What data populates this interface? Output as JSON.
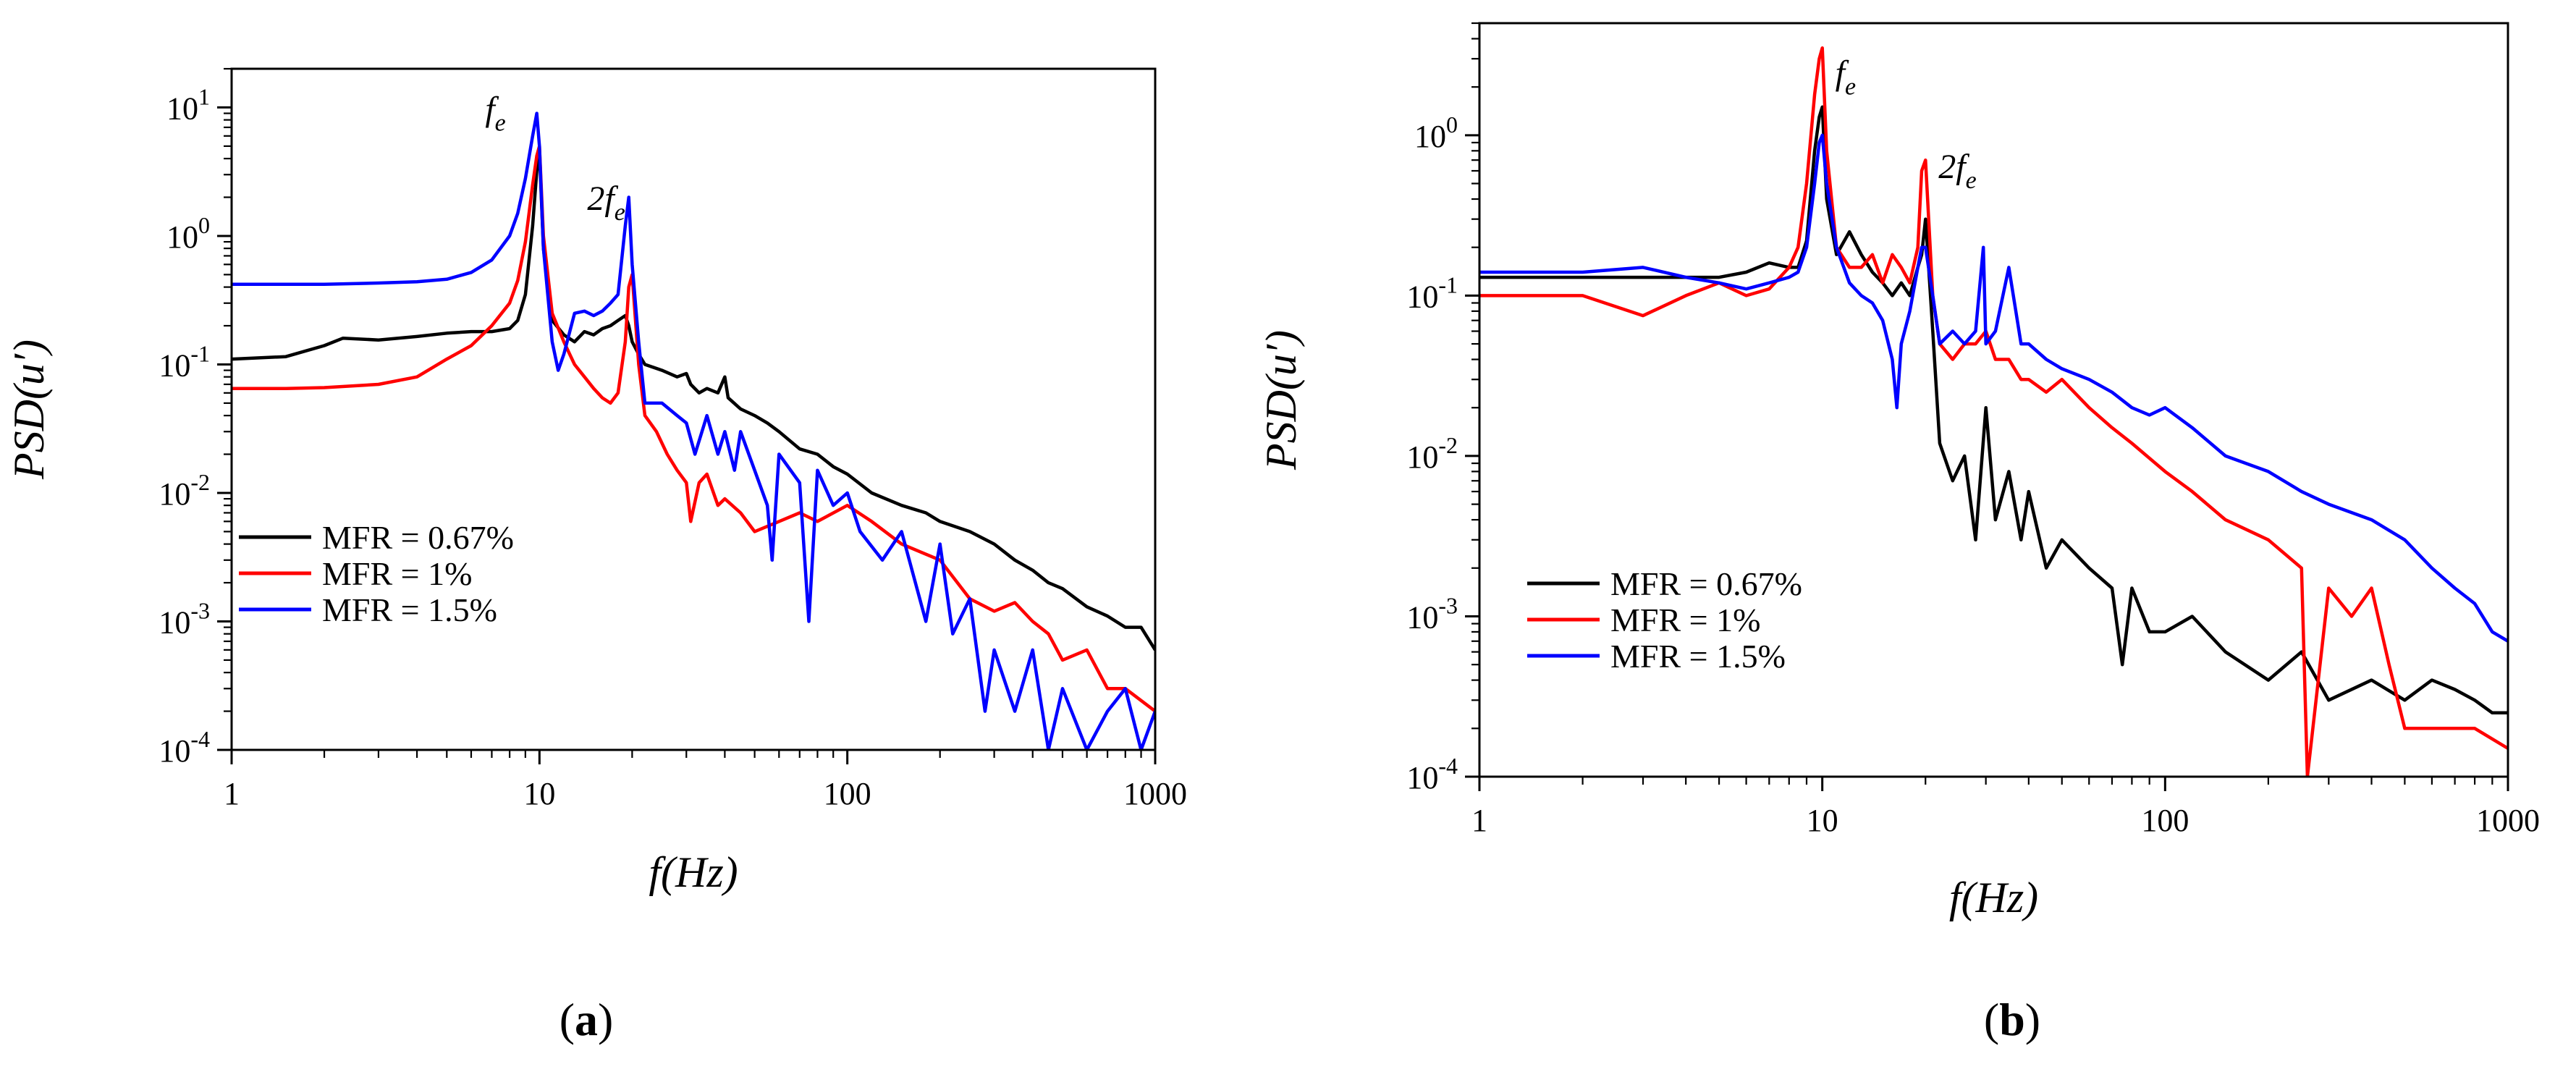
{
  "chart_data": [
    {
      "type": "line",
      "panel_label": "(a)",
      "xlabel": "f(Hz)",
      "ylabel": "PSD(u′)",
      "xscale": "log",
      "yscale": "log",
      "xlim": [
        1,
        1000
      ],
      "ylim": [
        0.0001,
        20
      ],
      "xticks": [
        "1",
        "10",
        "100",
        "1000"
      ],
      "yticks": [
        {
          "value": 0.0001,
          "base": "10",
          "exp": "-4"
        },
        {
          "value": 0.001,
          "base": "10",
          "exp": "-3"
        },
        {
          "value": 0.01,
          "base": "10",
          "exp": "-2"
        },
        {
          "value": 0.1,
          "base": "10",
          "exp": "-1"
        },
        {
          "value": 1,
          "base": "10",
          "exp": "0"
        },
        {
          "value": 10,
          "base": "10",
          "exp": "1"
        }
      ],
      "legend_position": "lower-left",
      "annotations": [
        {
          "main": "f",
          "sub": "e",
          "x": 10,
          "y": 10
        },
        {
          "main": "2f",
          "sub": "e",
          "x": 20,
          "y": 2.2
        }
      ],
      "series": [
        {
          "name": "MFR = 0.67%",
          "color": "#000000",
          "x": [
            1,
            1.5,
            2,
            2.3,
            3,
            4,
            5,
            6,
            7,
            8,
            8.5,
            9,
            9.5,
            9.8,
            10,
            10.3,
            11,
            12,
            13,
            14,
            15,
            16,
            17,
            18,
            19,
            19.5,
            20,
            21,
            22,
            25,
            28,
            30,
            31,
            33,
            35,
            38,
            40,
            41,
            45,
            50,
            55,
            60,
            70,
            80,
            90,
            100,
            120,
            150,
            180,
            200,
            250,
            300,
            350,
            400,
            450,
            500,
            600,
            700,
            800,
            900,
            1000
          ],
          "y": [
            0.11,
            0.115,
            0.14,
            0.16,
            0.155,
            0.165,
            0.175,
            0.18,
            0.18,
            0.19,
            0.22,
            0.35,
            1.2,
            3.2,
            4.5,
            0.8,
            0.22,
            0.17,
            0.15,
            0.18,
            0.17,
            0.19,
            0.2,
            0.22,
            0.24,
            0.2,
            0.15,
            0.12,
            0.1,
            0.09,
            0.08,
            0.085,
            0.07,
            0.06,
            0.065,
            0.06,
            0.08,
            0.055,
            0.045,
            0.04,
            0.035,
            0.03,
            0.022,
            0.02,
            0.016,
            0.014,
            0.01,
            0.008,
            0.007,
            0.006,
            0.005,
            0.004,
            0.003,
            0.0025,
            0.002,
            0.0018,
            0.0013,
            0.0011,
            0.0009,
            0.0009,
            0.0006
          ]
        },
        {
          "name": "MFR = 1%",
          "color": "#ff0000",
          "x": [
            1,
            1.5,
            2,
            3,
            4,
            5,
            6,
            7,
            8,
            8.5,
            9,
            9.5,
            9.8,
            10,
            10.3,
            11,
            12,
            13,
            14,
            15,
            16,
            17,
            18,
            19,
            19.5,
            20,
            21,
            22,
            24,
            26,
            28,
            30,
            31,
            33,
            35,
            38,
            40,
            45,
            50,
            60,
            70,
            80,
            100,
            120,
            150,
            200,
            250,
            300,
            350,
            400,
            450,
            500,
            600,
            700,
            800,
            1000
          ],
          "y": [
            0.065,
            0.065,
            0.066,
            0.07,
            0.08,
            0.11,
            0.14,
            0.2,
            0.3,
            0.45,
            0.9,
            2.5,
            4.2,
            5.0,
            1.0,
            0.25,
            0.15,
            0.1,
            0.08,
            0.065,
            0.055,
            0.05,
            0.06,
            0.15,
            0.4,
            0.5,
            0.1,
            0.04,
            0.03,
            0.02,
            0.015,
            0.012,
            0.006,
            0.012,
            0.014,
            0.008,
            0.009,
            0.007,
            0.005,
            0.006,
            0.007,
            0.006,
            0.008,
            0.006,
            0.004,
            0.003,
            0.0015,
            0.0012,
            0.0014,
            0.001,
            0.0008,
            0.0005,
            0.0006,
            0.0003,
            0.0003,
            0.0002
          ]
        },
        {
          "name": "MFR = 1.5%",
          "color": "#0000ff",
          "x": [
            1,
            2,
            3,
            4,
            5,
            6,
            7,
            8,
            8.5,
            9,
            9.5,
            9.8,
            10,
            10.3,
            11,
            11.5,
            12,
            13,
            14,
            15,
            16,
            17,
            18,
            19,
            19.5,
            20,
            21,
            22,
            25,
            28,
            30,
            32,
            35,
            38,
            40,
            43,
            45,
            50,
            55,
            57,
            60,
            70,
            75,
            80,
            90,
            100,
            110,
            130,
            150,
            180,
            200,
            220,
            250,
            280,
            300,
            350,
            400,
            450,
            500,
            600,
            700,
            800,
            900,
            1000
          ],
          "y": [
            0.42,
            0.42,
            0.43,
            0.44,
            0.46,
            0.52,
            0.65,
            1.0,
            1.5,
            2.8,
            6.0,
            9.0,
            5.0,
            0.8,
            0.15,
            0.09,
            0.12,
            0.25,
            0.26,
            0.24,
            0.26,
            0.3,
            0.35,
            1.2,
            2.0,
            0.6,
            0.15,
            0.05,
            0.05,
            0.04,
            0.035,
            0.02,
            0.04,
            0.02,
            0.03,
            0.015,
            0.03,
            0.015,
            0.008,
            0.003,
            0.02,
            0.012,
            0.001,
            0.015,
            0.008,
            0.01,
            0.005,
            0.003,
            0.005,
            0.001,
            0.004,
            0.0008,
            0.0015,
            0.0002,
            0.0006,
            0.0002,
            0.0006,
            0.0001,
            0.0003,
            0.0001,
            0.0002,
            0.0003,
            0.0001,
            0.0002
          ]
        }
      ]
    },
    {
      "type": "line",
      "panel_label": "(b)",
      "xlabel": "f(Hz)",
      "ylabel": "PSD(u′)",
      "xscale": "log",
      "yscale": "log",
      "xlim": [
        1,
        1000
      ],
      "ylim": [
        0.0001,
        5
      ],
      "xticks": [
        "1",
        "10",
        "100",
        "1000"
      ],
      "yticks": [
        {
          "value": 0.0001,
          "base": "10",
          "exp": "-4"
        },
        {
          "value": 0.001,
          "base": "10",
          "exp": "-3"
        },
        {
          "value": 0.01,
          "base": "10",
          "exp": "-2"
        },
        {
          "value": 0.1,
          "base": "10",
          "exp": "-1"
        },
        {
          "value": 1,
          "base": "10",
          "exp": "0"
        }
      ],
      "legend_position": "lower-left",
      "annotations": [
        {
          "main": "f",
          "sub": "e",
          "x": 10,
          "y": 2.5
        },
        {
          "main": "2f",
          "sub": "e",
          "x": 20,
          "y": 0.7
        }
      ],
      "series": [
        {
          "name": "MFR = 0.67%",
          "color": "#000000",
          "x": [
            1,
            2,
            3,
            4,
            5,
            6,
            7,
            8,
            8.5,
            9,
            9.5,
            9.8,
            10,
            10.3,
            11,
            12,
            13,
            14,
            15,
            16,
            17,
            18,
            19,
            19.5,
            20,
            21,
            22,
            24,
            26,
            28,
            30,
            32,
            35,
            38,
            40,
            45,
            50,
            60,
            70,
            75,
            80,
            90,
            100,
            120,
            150,
            200,
            250,
            300,
            400,
            500,
            600,
            700,
            800,
            900,
            1000
          ],
          "y": [
            0.13,
            0.13,
            0.13,
            0.13,
            0.13,
            0.14,
            0.16,
            0.15,
            0.15,
            0.22,
            0.8,
            1.3,
            1.5,
            0.4,
            0.18,
            0.25,
            0.18,
            0.14,
            0.12,
            0.1,
            0.12,
            0.1,
            0.15,
            0.18,
            0.3,
            0.06,
            0.012,
            0.007,
            0.01,
            0.003,
            0.02,
            0.004,
            0.008,
            0.003,
            0.006,
            0.002,
            0.003,
            0.002,
            0.0015,
            0.0005,
            0.0015,
            0.0008,
            0.0008,
            0.001,
            0.0006,
            0.0004,
            0.0006,
            0.0003,
            0.0004,
            0.0003,
            0.0004,
            0.00035,
            0.0003,
            0.00025,
            0.00025
          ]
        },
        {
          "name": "MFR = 1%",
          "color": "#ff0000",
          "x": [
            1,
            2,
            3,
            4,
            5,
            6,
            7,
            8,
            8.5,
            9,
            9.5,
            9.8,
            10,
            10.3,
            11,
            12,
            13,
            14,
            15,
            16,
            17,
            18,
            19,
            19.5,
            20,
            21,
            22,
            24,
            26,
            28,
            30,
            32,
            35,
            38,
            40,
            45,
            50,
            60,
            70,
            80,
            100,
            120,
            150,
            200,
            250,
            260,
            300,
            350,
            400,
            450,
            500,
            600,
            700,
            800,
            1000
          ],
          "y": [
            0.1,
            0.1,
            0.075,
            0.1,
            0.12,
            0.1,
            0.11,
            0.15,
            0.2,
            0.5,
            1.8,
            3.0,
            3.5,
            0.8,
            0.2,
            0.15,
            0.15,
            0.18,
            0.12,
            0.18,
            0.15,
            0.12,
            0.2,
            0.6,
            0.7,
            0.1,
            0.05,
            0.04,
            0.05,
            0.05,
            0.06,
            0.04,
            0.04,
            0.03,
            0.03,
            0.025,
            0.03,
            0.02,
            0.015,
            0.012,
            0.008,
            0.006,
            0.004,
            0.003,
            0.002,
            0.0001,
            0.0015,
            0.001,
            0.0015,
            0.0005,
            0.0002,
            0.0002,
            0.0002,
            0.0002,
            0.00015
          ]
        },
        {
          "name": "MFR = 1.5%",
          "color": "#0000ff",
          "x": [
            1,
            2,
            3,
            4,
            5,
            6,
            7,
            8,
            8.5,
            9,
            9.5,
            9.8,
            10,
            10.3,
            11,
            12,
            13,
            14,
            15,
            16,
            16.5,
            17,
            18,
            19,
            19.5,
            20,
            21,
            22,
            24,
            26,
            28,
            29.5,
            30,
            32,
            35,
            38,
            40,
            45,
            50,
            60,
            70,
            80,
            90,
            100,
            120,
            150,
            200,
            250,
            300,
            400,
            500,
            600,
            700,
            800,
            900,
            1000
          ],
          "y": [
            0.14,
            0.14,
            0.15,
            0.13,
            0.12,
            0.11,
            0.12,
            0.13,
            0.14,
            0.2,
            0.5,
            0.9,
            1.0,
            0.5,
            0.2,
            0.12,
            0.1,
            0.09,
            0.07,
            0.04,
            0.02,
            0.05,
            0.08,
            0.15,
            0.2,
            0.2,
            0.1,
            0.05,
            0.06,
            0.05,
            0.06,
            0.2,
            0.05,
            0.06,
            0.15,
            0.05,
            0.05,
            0.04,
            0.035,
            0.03,
            0.025,
            0.02,
            0.018,
            0.02,
            0.015,
            0.01,
            0.008,
            0.006,
            0.005,
            0.004,
            0.003,
            0.002,
            0.0015,
            0.0012,
            0.0008,
            0.0007
          ]
        }
      ]
    }
  ]
}
